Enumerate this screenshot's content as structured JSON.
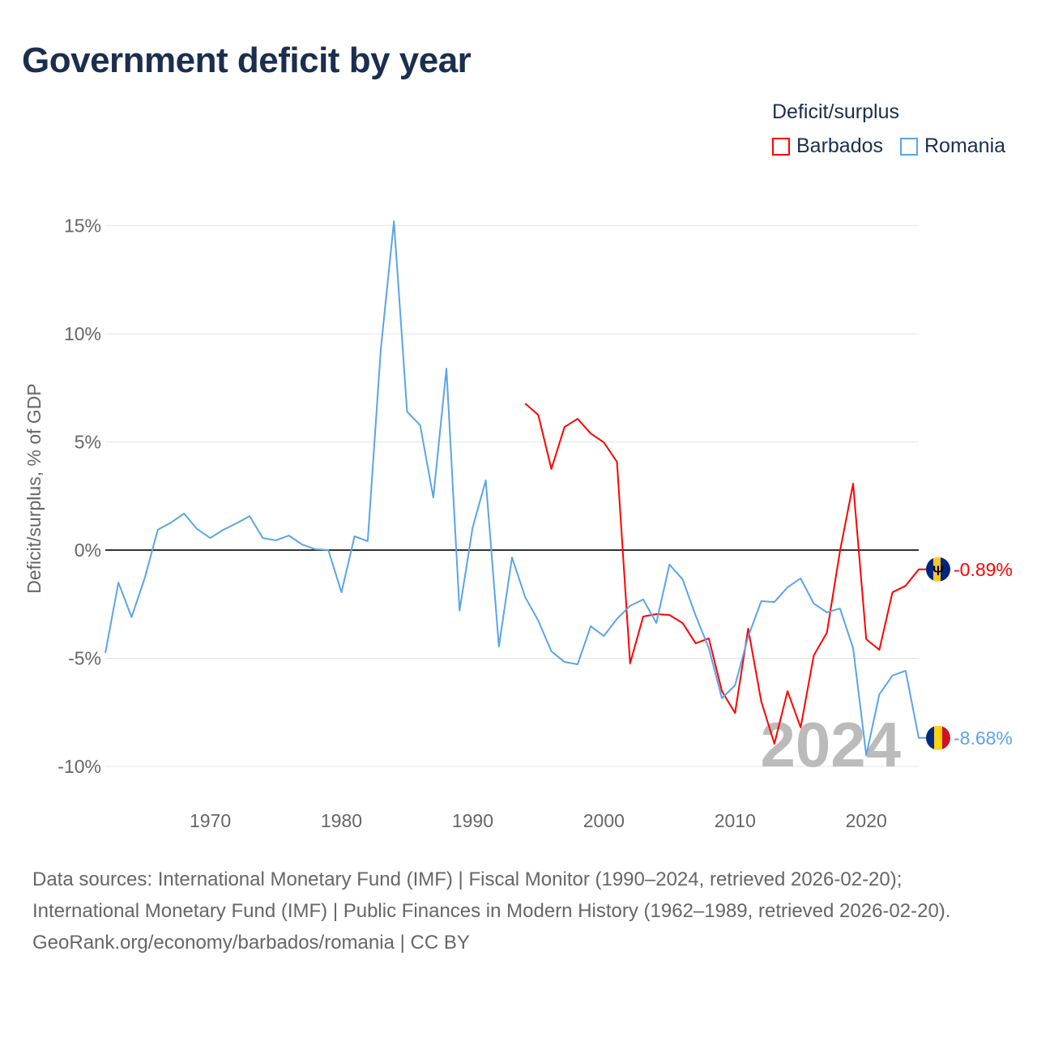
{
  "chart_data": {
    "type": "line",
    "title": "Government deficit by year",
    "ylabel": "Deficit/surplus, % of GDP",
    "xlabel": "",
    "ylim": [
      -10,
      15
    ],
    "xlim": [
      1962,
      2024
    ],
    "yticks": [
      {
        "v": 15,
        "label": "15%"
      },
      {
        "v": 10,
        "label": "10%"
      },
      {
        "v": 5,
        "label": "5%"
      },
      {
        "v": 0,
        "label": "0%"
      },
      {
        "v": -5,
        "label": "-5%"
      },
      {
        "v": -10,
        "label": "-10%"
      }
    ],
    "xticks": [
      {
        "v": 1970,
        "label": "1970"
      },
      {
        "v": 1980,
        "label": "1980"
      },
      {
        "v": 1990,
        "label": "1990"
      },
      {
        "v": 2000,
        "label": "2000"
      },
      {
        "v": 2010,
        "label": "2010"
      },
      {
        "v": 2020,
        "label": "2020"
      }
    ],
    "legend_title": "Deficit/surplus",
    "legend_position": "top-right",
    "year_watermark": "2024",
    "series": [
      {
        "name": "Barbados",
        "color": "#ff0000",
        "end_label": "-0.89%",
        "start": 1994,
        "values": [
          6.78,
          6.25,
          3.75,
          5.69,
          6.07,
          5.39,
          4.98,
          4.08,
          -5.24,
          -3.07,
          -2.96,
          -3.0,
          -3.37,
          -4.31,
          -4.08,
          -6.52,
          -7.53,
          -3.63,
          -7.0,
          -8.95,
          -6.52,
          -8.2,
          -4.87,
          -3.82,
          -0.04,
          3.07,
          -4.12,
          -4.61,
          -1.95,
          -1.65,
          -0.89
        ]
      },
      {
        "name": "Romania",
        "color": "#5ba4e8",
        "end_label": "-8.68%",
        "start": 1962,
        "values": [
          -4.76,
          -1.5,
          -3.1,
          -1.3,
          0.94,
          1.27,
          1.69,
          0.97,
          0.56,
          0.94,
          1.24,
          1.57,
          0.56,
          0.45,
          0.67,
          0.26,
          0.04,
          0,
          -1.95,
          0.64,
          0.41,
          9.3,
          15.2,
          6.4,
          5.77,
          2.43,
          8.39,
          -2.8,
          1.05,
          3.22,
          -4.46,
          -0.34,
          -2.17,
          -3.26,
          -4.68,
          -5.17,
          -5.28,
          -3.52,
          -3.97,
          -3.18,
          -2.58,
          -2.28,
          -3.37,
          -0.67,
          -1.35,
          -3.03,
          -4.53,
          -6.85,
          -6.25,
          -4.0,
          -2.36,
          -2.4,
          -1.72,
          -1.31,
          -2.47,
          -2.88,
          -2.7,
          -4.53,
          -9.48,
          -6.67,
          -5.8,
          -5.58,
          -8.68
        ]
      }
    ]
  },
  "footer": {
    "sources": "Data sources: International Monetary Fund (IMF) | Fiscal Monitor (1990–2024, retrieved 2026-02-20); International Monetary Fund (IMF) | Public Finances in Modern History (1962–1989, retrieved 2026-02-20).",
    "credit": "GeoRank.org/economy/barbados/romania | CC BY"
  }
}
